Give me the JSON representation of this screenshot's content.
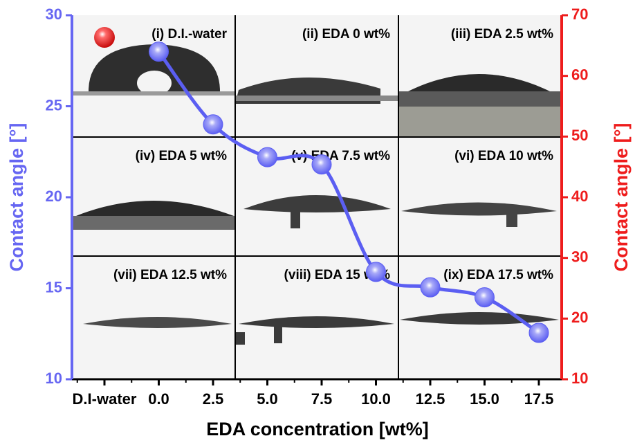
{
  "chart_data": {
    "type": "line",
    "x_label": "EDA concentration [wt%]",
    "y_label": "Contact angle [°]",
    "y2_label": "Contact angle [°]",
    "categories": [
      "D.I-water",
      "0.0",
      "2.5",
      "5.0",
      "7.5",
      "10.0",
      "12.5",
      "15.0",
      "17.5"
    ],
    "series": [
      {
        "color": "#5b5ef2",
        "values": [
          null,
          28.0,
          24.0,
          22.2,
          21.8,
          15.9,
          15.05,
          14.5,
          12.55
        ]
      }
    ],
    "ylim": [
      10,
      30
    ],
    "yticks": [
      10,
      15,
      20,
      25,
      30
    ],
    "y2lim": [
      10,
      70
    ],
    "y2ticks": [
      10,
      20,
      30,
      40,
      50,
      60,
      70
    ],
    "y_axis_color": "#6666f2",
    "y2_axis_color": "#ee1c1c",
    "annotations": [
      "(i) D.I.-water",
      "(ii) EDA 0 wt%",
      "(iii) EDA 2.5 wt%",
      "(iv) EDA 5 wt%",
      "(v) EDA 7.5 wt%",
      "(vi) EDA 10 wt%",
      "(vii) EDA 12.5 wt%",
      "(viii) EDA 15 wt%",
      "(ix) EDA 17.5 wt%"
    ]
  }
}
